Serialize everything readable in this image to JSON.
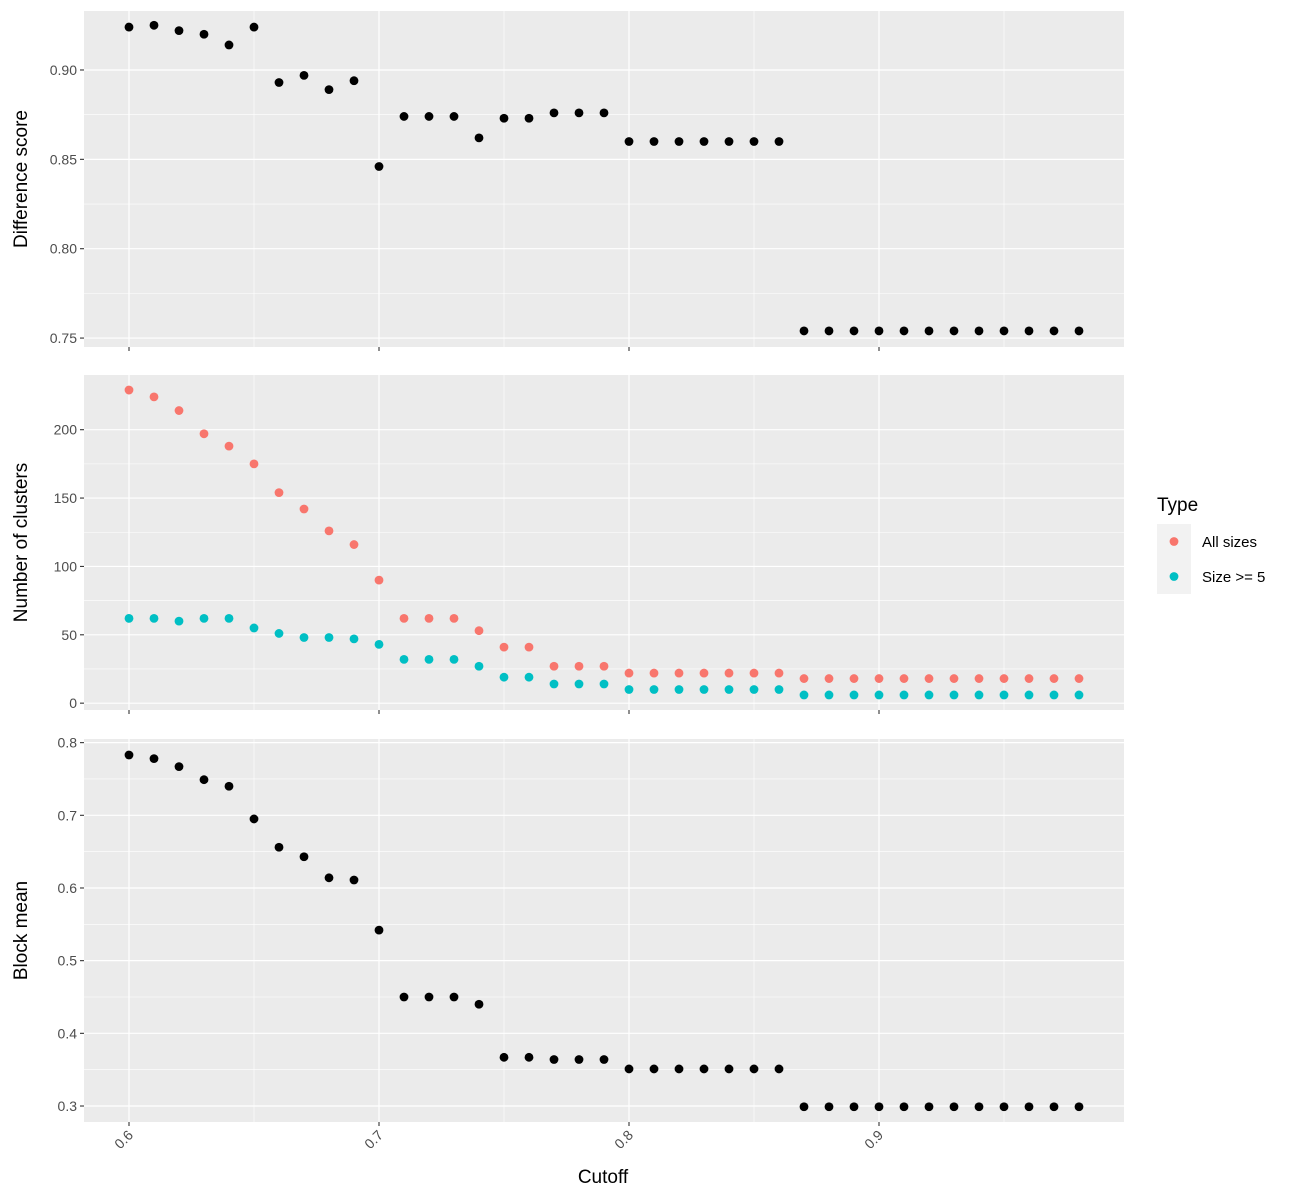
{
  "chart_data": {
    "type": "scatter",
    "x_label": "Cutoff",
    "x_ticks": [
      "0.6",
      "0.7",
      "0.8",
      "0.9"
    ],
    "x_range": [
      0.582,
      0.998
    ],
    "x": [
      0.6,
      0.61,
      0.62,
      0.63,
      0.64,
      0.65,
      0.66,
      0.67,
      0.68,
      0.69,
      0.7,
      0.71,
      0.72,
      0.73,
      0.74,
      0.75,
      0.76,
      0.77,
      0.78,
      0.79,
      0.8,
      0.81,
      0.82,
      0.83,
      0.84,
      0.85,
      0.86,
      0.87,
      0.88,
      0.89,
      0.9,
      0.91,
      0.92,
      0.93,
      0.94,
      0.95,
      0.96,
      0.97,
      0.98
    ],
    "grid": true,
    "legend": {
      "title": "Type",
      "position": "right",
      "items": [
        {
          "label": "All sizes",
          "color": "#F8766D"
        },
        {
          "label": "Size >= 5",
          "color": "#00BFC4"
        }
      ]
    },
    "panels": [
      {
        "ylabel": "Difference score",
        "ylim": [
          0.745,
          0.933
        ],
        "y_ticks": [
          0.75,
          0.8,
          0.85,
          0.9
        ],
        "y_tick_labels": [
          "0.75",
          "0.80",
          "0.85",
          "0.90"
        ],
        "series": [
          {
            "color": "#000000",
            "values": [
              0.924,
              0.925,
              0.922,
              0.92,
              0.914,
              0.924,
              0.893,
              0.897,
              0.889,
              0.894,
              0.846,
              0.874,
              0.874,
              0.874,
              0.862,
              0.873,
              0.873,
              0.876,
              0.876,
              0.876,
              0.86,
              0.86,
              0.86,
              0.86,
              0.86,
              0.86,
              0.86,
              0.754,
              0.754,
              0.754,
              0.754,
              0.754,
              0.754,
              0.754,
              0.754,
              0.754,
              0.754,
              0.754,
              0.754
            ]
          }
        ]
      },
      {
        "ylabel": "Number of clusters",
        "ylim": [
          -5,
          240
        ],
        "y_ticks": [
          0,
          50,
          100,
          150,
          200
        ],
        "y_tick_labels": [
          "0",
          "50",
          "100",
          "150",
          "200"
        ],
        "series": [
          {
            "name": "All sizes",
            "color": "#F8766D",
            "values": [
              229,
              224,
              214,
              197,
              188,
              175,
              154,
              142,
              126,
              116,
              90,
              62,
              62,
              62,
              53,
              41,
              41,
              27,
              27,
              27,
              22,
              22,
              22,
              22,
              22,
              22,
              22,
              18,
              18,
              18,
              18,
              18,
              18,
              18,
              18,
              18,
              18,
              18,
              18
            ]
          },
          {
            "name": "Size >= 5",
            "color": "#00BFC4",
            "values": [
              62,
              62,
              60,
              62,
              62,
              55,
              51,
              48,
              48,
              47,
              43,
              32,
              32,
              32,
              27,
              19,
              19,
              14,
              14,
              14,
              10,
              10,
              10,
              10,
              10,
              10,
              10,
              6,
              6,
              6,
              6,
              6,
              6,
              6,
              6,
              6,
              6,
              6,
              6
            ]
          }
        ]
      },
      {
        "ylabel": "Block mean",
        "ylim": [
          0.278,
          0.805
        ],
        "y_ticks": [
          0.3,
          0.4,
          0.5,
          0.6,
          0.7,
          0.8
        ],
        "y_tick_labels": [
          "0.3",
          "0.4",
          "0.5",
          "0.6",
          "0.7",
          "0.8"
        ],
        "series": [
          {
            "color": "#000000",
            "values": [
              0.783,
              0.778,
              0.767,
              0.749,
              0.74,
              0.695,
              0.656,
              0.643,
              0.614,
              0.611,
              0.542,
              0.45,
              0.45,
              0.45,
              0.44,
              0.367,
              0.367,
              0.364,
              0.364,
              0.364,
              0.351,
              0.351,
              0.351,
              0.351,
              0.351,
              0.351,
              0.351,
              0.299,
              0.299,
              0.299,
              0.299,
              0.299,
              0.299,
              0.299,
              0.299,
              0.299,
              0.299,
              0.299,
              0.299
            ]
          }
        ]
      }
    ]
  }
}
